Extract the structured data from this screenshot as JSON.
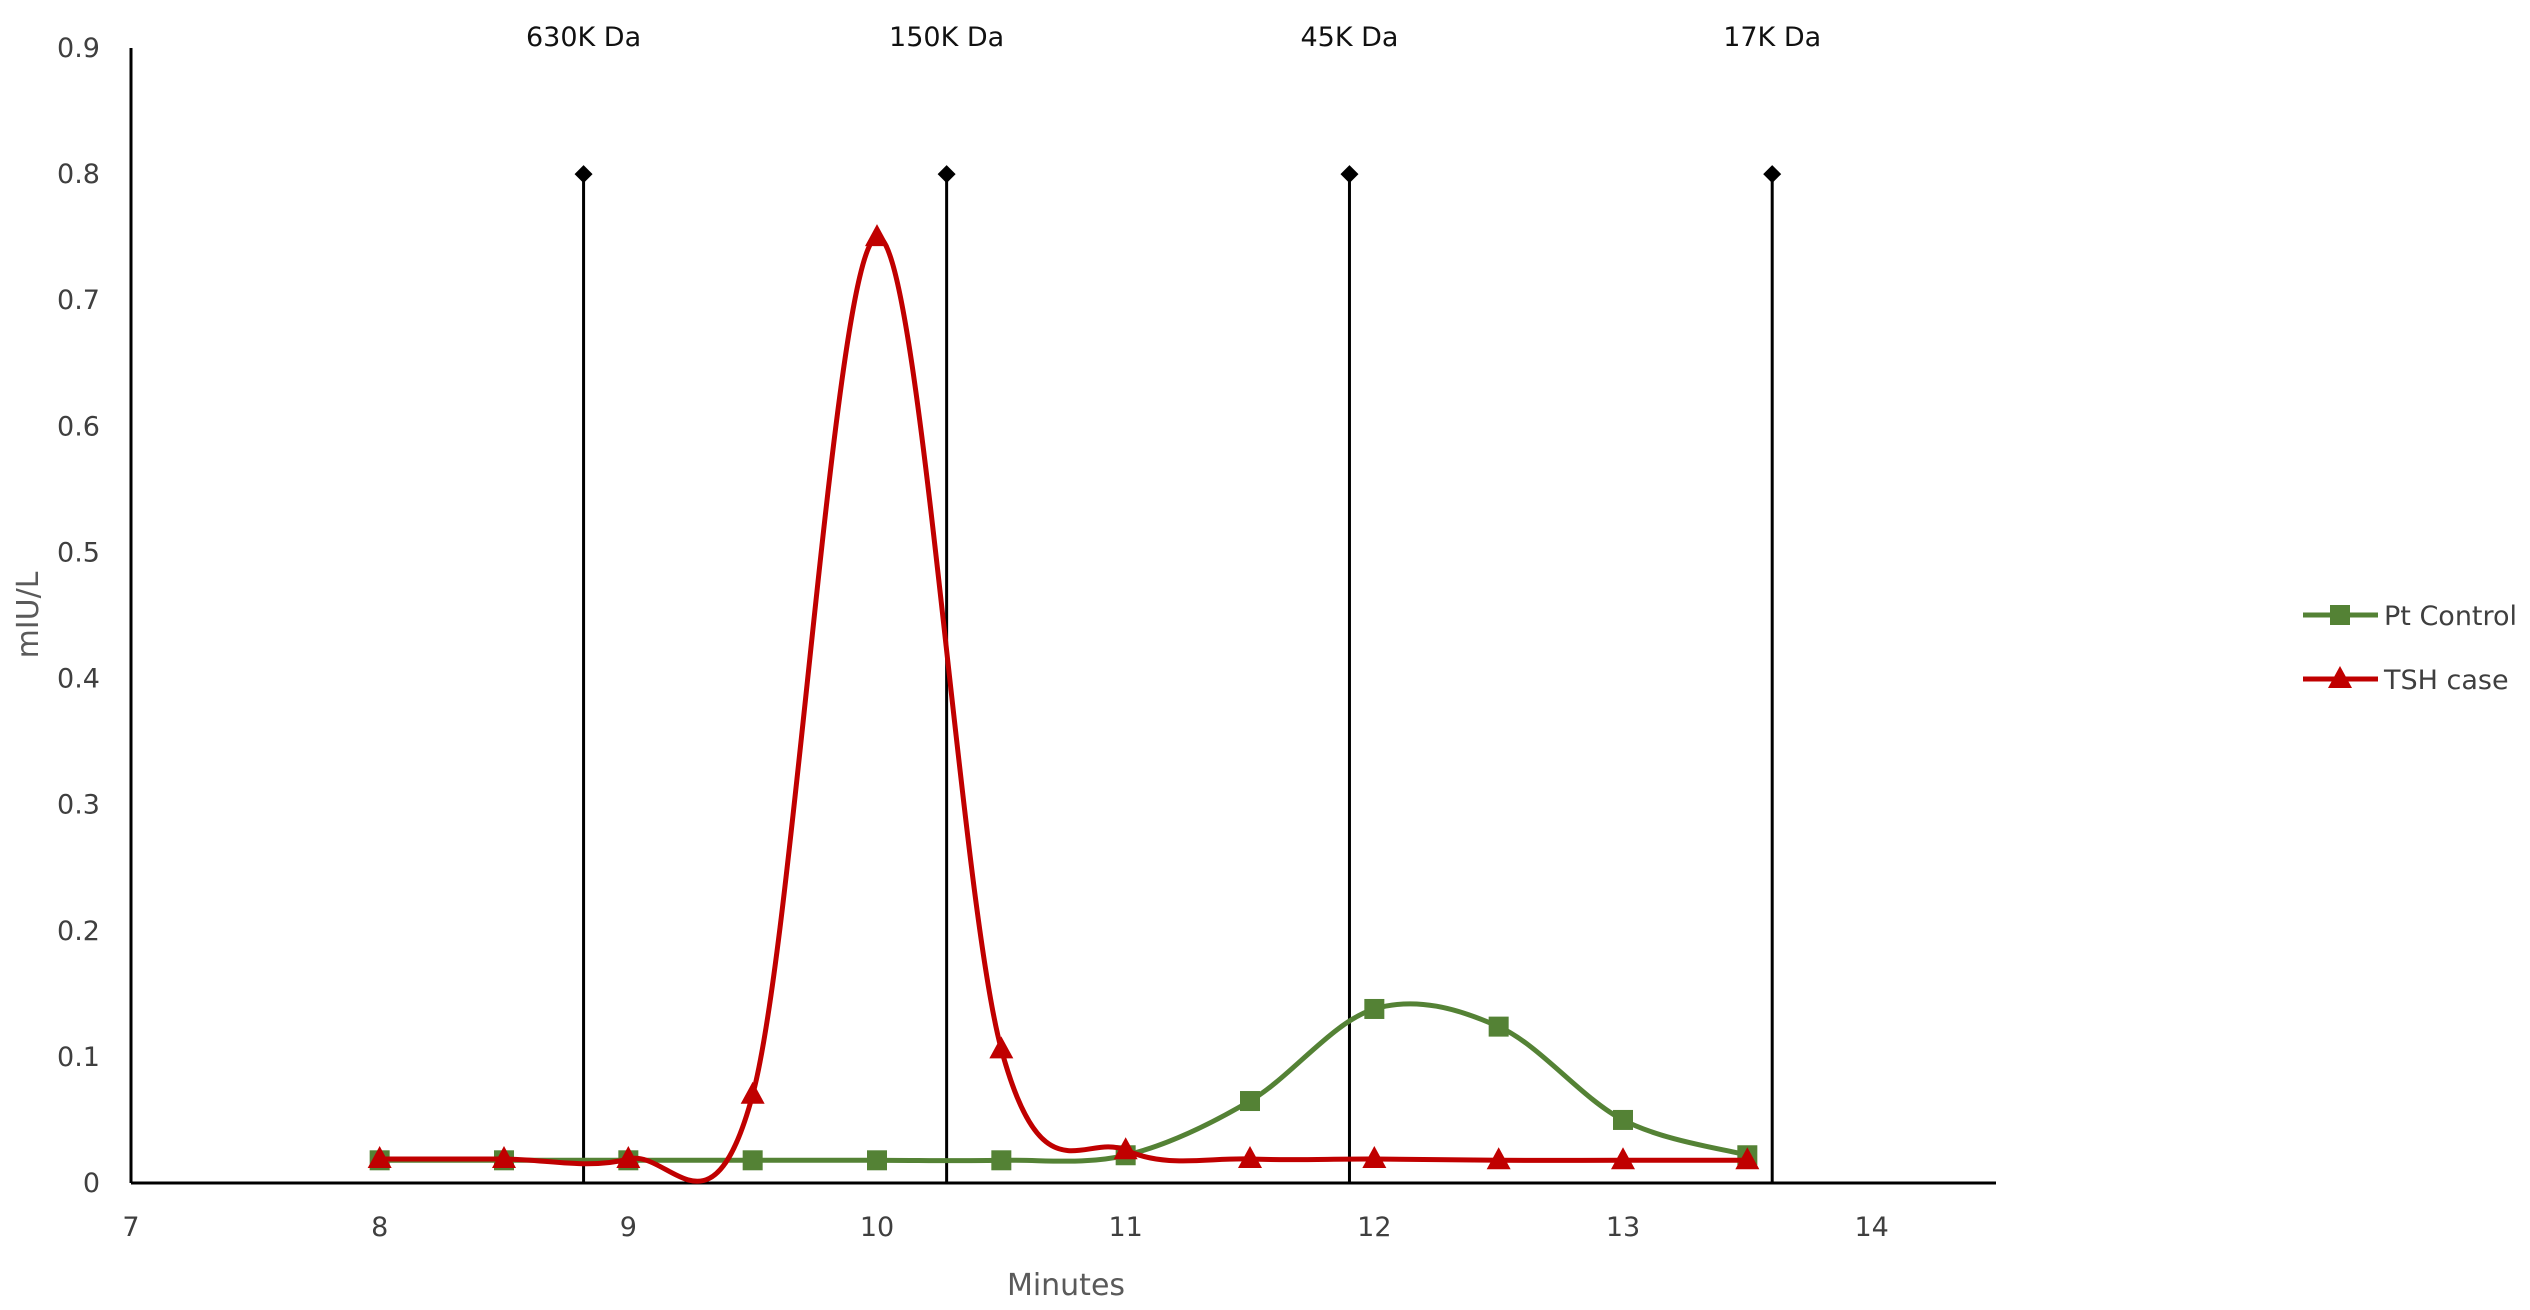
{
  "chart_data": {
    "type": "line",
    "title": "",
    "xlabel": "Minutes",
    "ylabel": "mIU/L",
    "xlim": [
      7,
      14.5
    ],
    "ylim": [
      0,
      0.9
    ],
    "x_ticks": [
      "7",
      "8",
      "9",
      "10",
      "11",
      "12",
      "13",
      "14"
    ],
    "y_ticks": [
      "0",
      "0.1",
      "0.2",
      "0.3",
      "0.4",
      "0.5",
      "0.6",
      "0.7",
      "0.8",
      "0.9"
    ],
    "grid": false,
    "legend_position": "right",
    "series": [
      {
        "name": "Pt Control",
        "color": "#548235",
        "marker": "square",
        "x": [
          8,
          8.5,
          9,
          9.5,
          10,
          10.5,
          11,
          11.5,
          12,
          12.5,
          13,
          13.5
        ],
        "y": [
          0.018,
          0.018,
          0.018,
          0.018,
          0.018,
          0.018,
          0.022,
          0.065,
          0.138,
          0.124,
          0.05,
          0.022
        ]
      },
      {
        "name": "TSH case",
        "color": "#c00000",
        "marker": "triangle",
        "x": [
          8,
          8.5,
          9,
          9.5,
          10,
          10.5,
          11,
          11.5,
          12,
          12.5,
          13,
          13.5
        ],
        "y": [
          0.019,
          0.019,
          0.019,
          0.07,
          0.75,
          0.106,
          0.026,
          0.019,
          0.019,
          0.018,
          0.018,
          0.018
        ]
      }
    ],
    "reference_lines": [
      {
        "label": "630K Da",
        "x": 8.82,
        "y_top": 0.8
      },
      {
        "label": "150K Da",
        "x": 10.28,
        "y_top": 0.8
      },
      {
        "label": "45K Da",
        "x": 11.9,
        "y_top": 0.8
      },
      {
        "label": "17K Da",
        "x": 13.6,
        "y_top": 0.8
      }
    ]
  }
}
